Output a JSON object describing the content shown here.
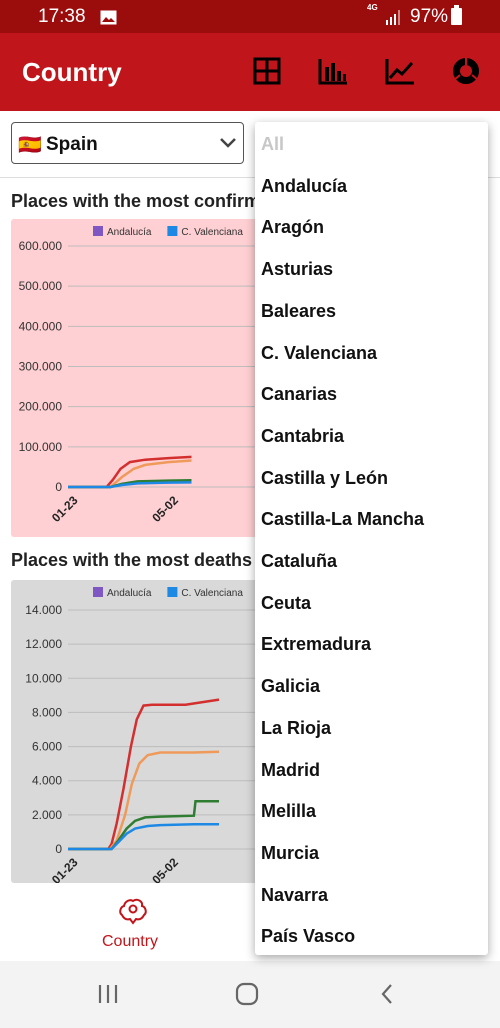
{
  "status_bar": {
    "time": "17:38",
    "network": "4G",
    "battery": "97%"
  },
  "app_bar": {
    "title": "Country",
    "icons": [
      "grid-icon",
      "bar-chart-icon",
      "line-chart-icon",
      "donut-chart-icon"
    ]
  },
  "country_select": {
    "flag": "🇪🇸",
    "value": "Spain"
  },
  "dropdown": {
    "options": [
      "All",
      "Andalucía",
      "Aragón",
      "Asturias",
      "Baleares",
      "C. Valenciana",
      "Canarias",
      "Cantabria",
      "Castilla y León",
      "Castilla-La Mancha",
      "Cataluña",
      "Ceuta",
      "Extremadura",
      "Galicia",
      "La Rioja",
      "Madrid",
      "Melilla",
      "Murcia",
      "Navarra",
      "País Vasco"
    ]
  },
  "sections": {
    "confirmed_title": "Places with the most confirmed",
    "deaths_title": "Places with the most deaths"
  },
  "colors": {
    "primary": "#c0161b",
    "status_bar": "#9b0d0d",
    "confirmed_bg": "#ffd0d3",
    "deaths_bg": "#d9d9d9"
  },
  "chart_data": [
    {
      "type": "line",
      "bg": "#ffd0d3",
      "legend": [
        {
          "name": "Andalucía",
          "color": "#7e57c2"
        },
        {
          "name": "C. Valenciana",
          "color": "#1e88e5"
        }
      ],
      "y_ticks": [
        "600.000",
        "500.000",
        "400.000",
        "300.000",
        "200.000",
        "100.000",
        "0"
      ],
      "ylim": [
        0,
        600000
      ],
      "x_ticks": [
        "01-23",
        "05-02"
      ],
      "series": [
        {
          "color": "#d32f2f",
          "x": [
            0,
            50,
            58,
            68,
            80,
            100,
            130,
            160
          ],
          "y": [
            0,
            0,
            18000,
            45000,
            62000,
            68000,
            72000,
            75000
          ]
        },
        {
          "color": "#ef9a5a",
          "x": [
            0,
            55,
            70,
            85,
            100,
            130,
            160
          ],
          "y": [
            0,
            0,
            25000,
            45000,
            55000,
            62000,
            66000
          ]
        },
        {
          "color": "#2e7d32",
          "x": [
            0,
            55,
            70,
            90,
            130,
            160
          ],
          "y": [
            0,
            0,
            8000,
            14000,
            16000,
            17000
          ]
        },
        {
          "color": "#1e88e5",
          "x": [
            0,
            55,
            70,
            90,
            130,
            160
          ],
          "y": [
            0,
            0,
            5000,
            9000,
            11000,
            11500
          ]
        }
      ]
    },
    {
      "type": "line",
      "bg": "#d9d9d9",
      "legend": [
        {
          "name": "Andalucía",
          "color": "#7e57c2"
        },
        {
          "name": "C. Valenciana",
          "color": "#1e88e5"
        }
      ],
      "y_ticks": [
        "14.000",
        "12.000",
        "10.000",
        "8.000",
        "6.000",
        "4.000",
        "2.000",
        "0"
      ],
      "ylim": [
        0,
        14000
      ],
      "x_ticks": [
        "01-23",
        "05-02"
      ],
      "series": [
        {
          "color": "#d32f2f",
          "x": [
            0,
            48,
            52,
            58,
            66,
            75,
            82,
            90,
            100,
            140,
            180
          ],
          "y": [
            0,
            0,
            300,
            1500,
            3500,
            6000,
            7600,
            8400,
            8450,
            8450,
            8750
          ]
        },
        {
          "color": "#ef9a5a",
          "x": [
            0,
            50,
            58,
            68,
            76,
            85,
            95,
            110,
            150,
            180
          ],
          "y": [
            0,
            0,
            500,
            2000,
            3800,
            5000,
            5500,
            5650,
            5650,
            5700
          ]
        },
        {
          "color": "#2e7d32",
          "x": [
            0,
            52,
            60,
            70,
            80,
            92,
            110,
            150,
            152,
            180
          ],
          "y": [
            0,
            0,
            500,
            1200,
            1650,
            1850,
            1900,
            1950,
            2800,
            2800
          ]
        },
        {
          "color": "#1e88e5",
          "x": [
            0,
            52,
            60,
            70,
            80,
            95,
            110,
            150,
            180
          ],
          "y": [
            0,
            0,
            400,
            900,
            1200,
            1350,
            1400,
            1450,
            1450
          ]
        }
      ]
    }
  ]
}
